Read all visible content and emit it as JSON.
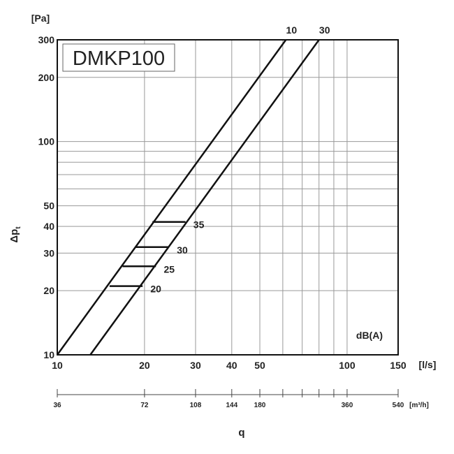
{
  "chart_data": {
    "type": "line",
    "title": "DMKP100",
    "x_scale": "log",
    "y_scale": "log",
    "xlim": [
      10,
      150
    ],
    "ylim": [
      10,
      300
    ],
    "ylabel": "Δp",
    "ylabel_subscript": "t",
    "y_unit": "[Pa]",
    "x_unit": "[l/s]",
    "x_ticks": [
      10,
      20,
      30,
      40,
      50,
      100,
      150
    ],
    "x_grid": [
      10,
      20,
      30,
      40,
      50,
      60,
      70,
      80,
      90,
      100,
      150
    ],
    "y_ticks": [
      10,
      20,
      30,
      40,
      50,
      100,
      200,
      300
    ],
    "y_grid": [
      10,
      20,
      30,
      40,
      50,
      60,
      70,
      80,
      90,
      100,
      200,
      300
    ],
    "secondary_axis": {
      "unit": "[m³/h]",
      "label": "q",
      "ticks": [
        36,
        72,
        108,
        144,
        180,
        360,
        540
      ],
      "minor_ticks": [
        216,
        252,
        288,
        324
      ]
    },
    "series": [
      {
        "name": "10",
        "x": [
          10,
          61.5
        ],
        "y": [
          10,
          300
        ]
      },
      {
        "name": "30",
        "x": [
          13,
          80
        ],
        "y": [
          10,
          300
        ]
      }
    ],
    "noise_label": "dB(A)",
    "noise_levels": [
      {
        "label": "20",
        "y": 21,
        "x": [
          15.15,
          19.7
        ]
      },
      {
        "label": "25",
        "y": 26,
        "x": [
          16.8,
          21.9
        ]
      },
      {
        "label": "30",
        "y": 32,
        "x": [
          18.6,
          24.3
        ]
      },
      {
        "label": "35",
        "y": 42,
        "x": [
          21.3,
          27.7
        ]
      }
    ],
    "grid": true
  }
}
